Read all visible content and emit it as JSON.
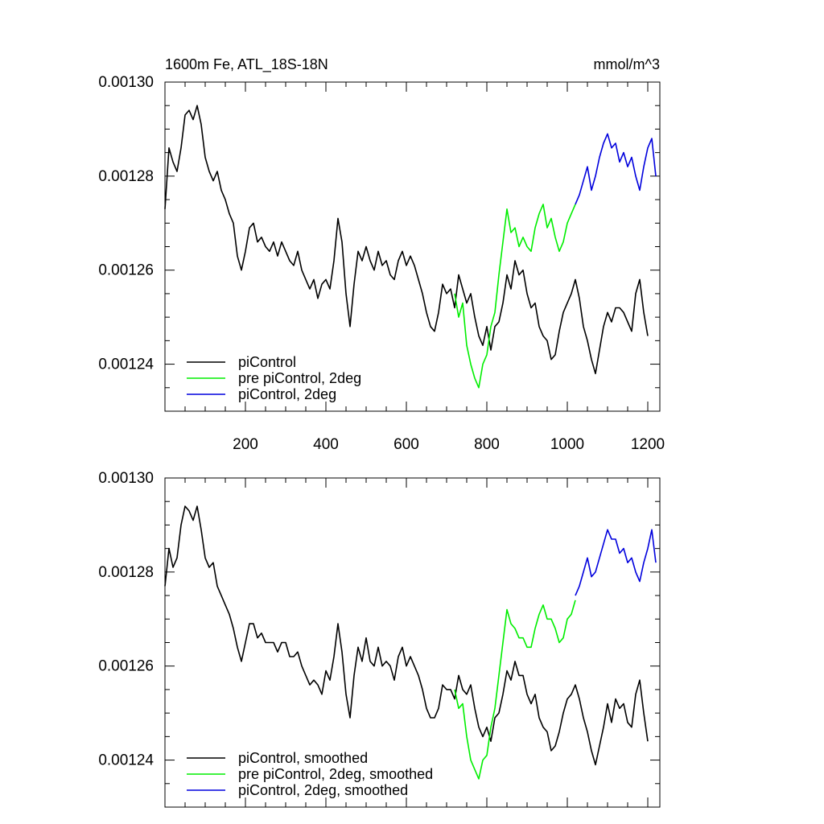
{
  "chart_data": [
    {
      "type": "line",
      "title": "1600m Fe, ATL_18S-18N",
      "units_label": "mmol/m^3",
      "xlim": [
        0,
        1230
      ],
      "ylim": [
        0.00123,
        0.0013
      ],
      "yticks": [
        "0.00130",
        "0.00128",
        "0.00126",
        "0.00124"
      ],
      "ytick_values": [
        0.0013,
        0.00128,
        0.00126,
        0.00124
      ],
      "xticks": [
        "200",
        "400",
        "600",
        "800",
        "1000",
        "1200"
      ],
      "xtick_values": [
        200,
        400,
        600,
        800,
        1000,
        1200
      ],
      "legend_position": "bottom-left",
      "series": [
        {
          "name": "piControl",
          "color": "#000000",
          "x": [
            0,
            10,
            20,
            30,
            40,
            50,
            60,
            70,
            80,
            90,
            100,
            110,
            120,
            130,
            140,
            150,
            160,
            170,
            180,
            190,
            200,
            210,
            220,
            230,
            240,
            250,
            260,
            270,
            280,
            290,
            300,
            310,
            320,
            330,
            340,
            350,
            360,
            370,
            380,
            390,
            400,
            410,
            420,
            430,
            440,
            450,
            460,
            470,
            480,
            490,
            500,
            510,
            520,
            530,
            540,
            550,
            560,
            570,
            580,
            590,
            600,
            610,
            620,
            630,
            640,
            650,
            660,
            670,
            680,
            690,
            700,
            710,
            720,
            730,
            740,
            750,
            760,
            770,
            780,
            790,
            800,
            810,
            820,
            830,
            840,
            850,
            860,
            870,
            880,
            890,
            900,
            910,
            920,
            930,
            940,
            950,
            960,
            970,
            980,
            990,
            1000,
            1010,
            1020,
            1030,
            1040,
            1050,
            1060,
            1070,
            1080,
            1090,
            1100,
            1110,
            1120,
            1130,
            1140,
            1150,
            1160,
            1170,
            1180,
            1190,
            1200
          ],
          "y": [
            0.001273,
            0.001286,
            0.001283,
            0.001281,
            0.001286,
            0.001293,
            0.001294,
            0.001292,
            0.001295,
            0.001291,
            0.001284,
            0.001281,
            0.001279,
            0.001281,
            0.001277,
            0.001275,
            0.001272,
            0.00127,
            0.001263,
            0.00126,
            0.001264,
            0.001269,
            0.00127,
            0.001266,
            0.001267,
            0.001265,
            0.001264,
            0.001266,
            0.001263,
            0.001266,
            0.001264,
            0.001262,
            0.001261,
            0.001264,
            0.00126,
            0.001258,
            0.001256,
            0.001258,
            0.001254,
            0.001257,
            0.001258,
            0.001256,
            0.001262,
            0.001271,
            0.001266,
            0.001255,
            0.001248,
            0.001257,
            0.001264,
            0.001262,
            0.001265,
            0.001262,
            0.00126,
            0.001264,
            0.001261,
            0.001262,
            0.001259,
            0.001258,
            0.001262,
            0.001264,
            0.001261,
            0.001263,
            0.001261,
            0.001258,
            0.001255,
            0.001251,
            0.001248,
            0.001247,
            0.001251,
            0.001257,
            0.001255,
            0.001256,
            0.001252,
            0.001259,
            0.001256,
            0.001253,
            0.001255,
            0.00125,
            0.001246,
            0.001244,
            0.001248,
            0.001243,
            0.001248,
            0.001249,
            0.001253,
            0.001259,
            0.001256,
            0.001262,
            0.001259,
            0.00126,
            0.001255,
            0.001252,
            0.001253,
            0.001248,
            0.001246,
            0.001245,
            0.001241,
            0.001242,
            0.001247,
            0.001251,
            0.001253,
            0.001255,
            0.001258,
            0.001254,
            0.001248,
            0.001245,
            0.001241,
            0.001238,
            0.001243,
            0.001248,
            0.001251,
            0.001249,
            0.001252,
            0.001252,
            0.001251,
            0.001249,
            0.001247,
            0.001255,
            0.001258,
            0.001251,
            0.001246
          ]
        },
        {
          "name": "pre piControl, 2deg",
          "color": "#00ee00",
          "x": [
            720,
            730,
            740,
            750,
            760,
            770,
            780,
            790,
            800,
            810,
            820,
            830,
            840,
            850,
            860,
            870,
            880,
            890,
            900,
            910,
            920,
            930,
            940,
            950,
            960,
            970,
            980,
            990,
            1000,
            1010,
            1020
          ],
          "y": [
            0.001255,
            0.00125,
            0.001253,
            0.001244,
            0.00124,
            0.001237,
            0.001235,
            0.00124,
            0.001242,
            0.001248,
            0.001251,
            0.001259,
            0.001266,
            0.001273,
            0.001268,
            0.001269,
            0.001265,
            0.001267,
            0.001265,
            0.001264,
            0.001269,
            0.001272,
            0.001274,
            0.001269,
            0.001271,
            0.001267,
            0.001264,
            0.001266,
            0.00127,
            0.001272,
            0.001274
          ]
        },
        {
          "name": "piControl, 2deg",
          "color": "#0000dd",
          "x": [
            1020,
            1030,
            1040,
            1050,
            1060,
            1070,
            1080,
            1090,
            1100,
            1110,
            1120,
            1130,
            1140,
            1150,
            1160,
            1170,
            1180,
            1190,
            1200,
            1210,
            1220
          ],
          "y": [
            0.001274,
            0.001276,
            0.001279,
            0.001282,
            0.001277,
            0.00128,
            0.001284,
            0.001287,
            0.001289,
            0.001286,
            0.001287,
            0.001283,
            0.001285,
            0.001282,
            0.001284,
            0.00128,
            0.001277,
            0.001282,
            0.001286,
            0.001288,
            0.00128
          ]
        }
      ]
    },
    {
      "type": "line",
      "title": "",
      "xlim": [
        0,
        1230
      ],
      "ylim": [
        0.00123,
        0.0013
      ],
      "yticks": [
        "0.00130",
        "0.00128",
        "0.00126",
        "0.00124"
      ],
      "ytick_values": [
        0.0013,
        0.00128,
        0.00126,
        0.00124
      ],
      "xtick_values": [
        200,
        400,
        600,
        800,
        1000,
        1200
      ],
      "legend_position": "bottom-left",
      "series": [
        {
          "name": "piControl, smoothed",
          "color": "#000000",
          "x": [
            0,
            10,
            20,
            30,
            40,
            50,
            60,
            70,
            80,
            90,
            100,
            110,
            120,
            130,
            140,
            150,
            160,
            170,
            180,
            190,
            200,
            210,
            220,
            230,
            240,
            250,
            260,
            270,
            280,
            290,
            300,
            310,
            320,
            330,
            340,
            350,
            360,
            370,
            380,
            390,
            400,
            410,
            420,
            430,
            440,
            450,
            460,
            470,
            480,
            490,
            500,
            510,
            520,
            530,
            540,
            550,
            560,
            570,
            580,
            590,
            600,
            610,
            620,
            630,
            640,
            650,
            660,
            670,
            680,
            690,
            700,
            710,
            720,
            730,
            740,
            750,
            760,
            770,
            780,
            790,
            800,
            810,
            820,
            830,
            840,
            850,
            860,
            870,
            880,
            890,
            900,
            910,
            920,
            930,
            940,
            950,
            960,
            970,
            980,
            990,
            1000,
            1010,
            1020,
            1030,
            1040,
            1050,
            1060,
            1070,
            1080,
            1090,
            1100,
            1110,
            1120,
            1130,
            1140,
            1150,
            1160,
            1170,
            1180,
            1190,
            1200
          ],
          "y": [
            0.001277,
            0.001285,
            0.001281,
            0.001283,
            0.00129,
            0.001294,
            0.001293,
            0.001291,
            0.001294,
            0.001289,
            0.001283,
            0.001281,
            0.001282,
            0.001277,
            0.001275,
            0.001273,
            0.001271,
            0.001268,
            0.001264,
            0.001261,
            0.001265,
            0.001269,
            0.001269,
            0.001266,
            0.001267,
            0.001265,
            0.001265,
            0.001265,
            0.001263,
            0.001265,
            0.001265,
            0.001262,
            0.001262,
            0.001263,
            0.00126,
            0.001258,
            0.001256,
            0.001257,
            0.001256,
            0.001254,
            0.001259,
            0.001257,
            0.001262,
            0.001269,
            0.001263,
            0.001254,
            0.001249,
            0.001258,
            0.001264,
            0.001261,
            0.001266,
            0.001261,
            0.00126,
            0.001264,
            0.00126,
            0.001261,
            0.00126,
            0.001257,
            0.001262,
            0.001264,
            0.00126,
            0.001262,
            0.00126,
            0.001258,
            0.001255,
            0.001251,
            0.001249,
            0.001249,
            0.001251,
            0.001256,
            0.001255,
            0.001255,
            0.001253,
            0.001258,
            0.001255,
            0.001254,
            0.001256,
            0.001251,
            0.001247,
            0.001245,
            0.001247,
            0.001244,
            0.001249,
            0.00125,
            0.001254,
            0.001259,
            0.001257,
            0.001261,
            0.001258,
            0.001258,
            0.001254,
            0.001252,
            0.001254,
            0.001249,
            0.001247,
            0.001246,
            0.001242,
            0.001243,
            0.001246,
            0.00125,
            0.001253,
            0.001254,
            0.001256,
            0.001253,
            0.001249,
            0.001246,
            0.001242,
            0.001239,
            0.001243,
            0.001247,
            0.001252,
            0.001248,
            0.001253,
            0.001251,
            0.001252,
            0.001248,
            0.001247,
            0.001254,
            0.001257,
            0.00125,
            0.001244
          ]
        },
        {
          "name": "pre piControl, 2deg, smoothed",
          "color": "#00ee00",
          "x": [
            720,
            730,
            740,
            750,
            760,
            770,
            780,
            790,
            800,
            810,
            820,
            830,
            840,
            850,
            860,
            870,
            880,
            890,
            900,
            910,
            920,
            930,
            940,
            950,
            960,
            970,
            980,
            990,
            1000,
            1010,
            1020
          ],
          "y": [
            0.001255,
            0.001251,
            0.001252,
            0.001245,
            0.00124,
            0.001238,
            0.001236,
            0.00124,
            0.001241,
            0.001247,
            0.001251,
            0.001258,
            0.001265,
            0.001272,
            0.001269,
            0.001268,
            0.001266,
            0.001266,
            0.001264,
            0.001264,
            0.001268,
            0.001271,
            0.001273,
            0.00127,
            0.00127,
            0.001268,
            0.001265,
            0.001266,
            0.00127,
            0.001271,
            0.001274
          ]
        },
        {
          "name": "piControl, 2deg, smoothed",
          "color": "#0000dd",
          "x": [
            1020,
            1030,
            1040,
            1050,
            1060,
            1070,
            1080,
            1090,
            1100,
            1110,
            1120,
            1130,
            1140,
            1150,
            1160,
            1170,
            1180,
            1190,
            1200,
            1210,
            1220
          ],
          "y": [
            0.001275,
            0.001277,
            0.00128,
            0.001283,
            0.001279,
            0.00128,
            0.001283,
            0.001286,
            0.001289,
            0.001287,
            0.001287,
            0.001284,
            0.001285,
            0.001282,
            0.001283,
            0.00128,
            0.001278,
            0.001282,
            0.001285,
            0.001289,
            0.001282
          ]
        }
      ]
    }
  ]
}
